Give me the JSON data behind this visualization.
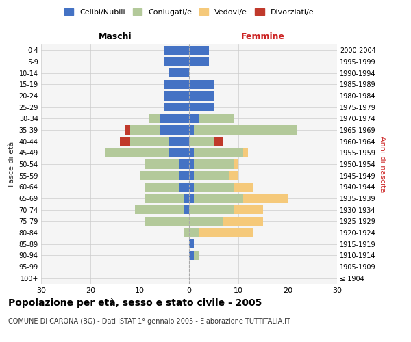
{
  "age_groups": [
    "100+",
    "95-99",
    "90-94",
    "85-89",
    "80-84",
    "75-79",
    "70-74",
    "65-69",
    "60-64",
    "55-59",
    "50-54",
    "45-49",
    "40-44",
    "35-39",
    "30-34",
    "25-29",
    "20-24",
    "15-19",
    "10-14",
    "5-9",
    "0-4"
  ],
  "birth_years": [
    "≤ 1904",
    "1905-1909",
    "1910-1914",
    "1915-1919",
    "1920-1924",
    "1925-1929",
    "1930-1934",
    "1935-1939",
    "1940-1944",
    "1945-1949",
    "1950-1954",
    "1955-1959",
    "1960-1964",
    "1965-1969",
    "1970-1974",
    "1975-1979",
    "1980-1984",
    "1985-1989",
    "1990-1994",
    "1995-1999",
    "2000-2004"
  ],
  "males": {
    "celibi": [
      0,
      0,
      0,
      0,
      0,
      0,
      1,
      1,
      2,
      2,
      2,
      4,
      4,
      6,
      6,
      5,
      5,
      5,
      4,
      5,
      5
    ],
    "coniugati": [
      0,
      0,
      0,
      0,
      1,
      9,
      10,
      8,
      7,
      8,
      7,
      13,
      8,
      6,
      2,
      0,
      0,
      0,
      0,
      0,
      0
    ],
    "vedovi": [
      0,
      0,
      0,
      0,
      0,
      0,
      0,
      0,
      0,
      0,
      0,
      0,
      0,
      0,
      0,
      0,
      0,
      0,
      0,
      0,
      0
    ],
    "divorziati": [
      0,
      0,
      0,
      0,
      0,
      0,
      0,
      0,
      0,
      0,
      0,
      0,
      2,
      1,
      0,
      0,
      0,
      0,
      0,
      0,
      0
    ]
  },
  "females": {
    "nubili": [
      0,
      0,
      1,
      1,
      0,
      0,
      0,
      1,
      1,
      1,
      1,
      1,
      0,
      1,
      2,
      5,
      5,
      5,
      0,
      4,
      4
    ],
    "coniugate": [
      0,
      0,
      1,
      0,
      2,
      7,
      9,
      10,
      8,
      7,
      8,
      10,
      5,
      21,
      7,
      0,
      0,
      0,
      0,
      0,
      0
    ],
    "vedove": [
      0,
      0,
      0,
      0,
      11,
      8,
      6,
      9,
      4,
      2,
      1,
      1,
      0,
      0,
      0,
      0,
      0,
      0,
      0,
      0,
      0
    ],
    "divorziate": [
      0,
      0,
      0,
      0,
      0,
      0,
      0,
      0,
      0,
      0,
      0,
      0,
      2,
      0,
      0,
      0,
      0,
      0,
      0,
      0,
      0
    ]
  },
  "colors": {
    "celibi": "#4472c4",
    "coniugati": "#b3c99a",
    "vedovi": "#f5c97a",
    "divorziati": "#c0392b"
  },
  "xlim": 30,
  "title": "Popolazione per età, sesso e stato civile - 2005",
  "subtitle": "COMUNE DI CARONA (BG) - Dati ISTAT 1° gennaio 2005 - Elaborazione TUTTITALIA.IT",
  "ylabel_left": "Fasce di età",
  "ylabel_right": "Anni di nascita"
}
